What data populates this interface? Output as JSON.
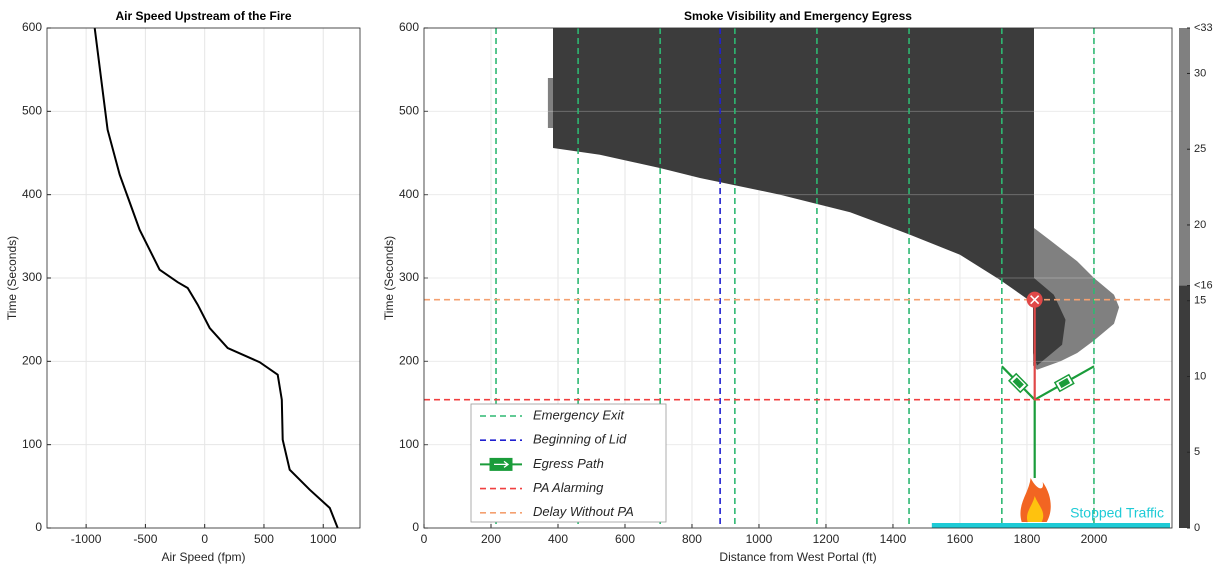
{
  "chart_data": [
    {
      "type": "line",
      "title": "Air Speed Upstream of the Fire",
      "xlabel": "Air Speed (fpm)",
      "ylabel": "Time (Seconds)",
      "xlim": [
        -1330,
        1310
      ],
      "ylim": [
        0,
        600
      ],
      "xticks": [
        -1000,
        -500,
        0,
        500,
        1000
      ],
      "yticks": [
        0,
        100,
        200,
        300,
        400,
        500,
        600
      ],
      "grid": true,
      "series": [
        {
          "color": "#000000",
          "x": [
            -928,
            -819,
            -717,
            -549,
            -380,
            -228,
            -143,
            -59,
            42,
            194,
            464,
            616,
            650,
            658,
            717,
            886,
            1055,
            1122
          ],
          "values": [
            600,
            478,
            424,
            358,
            310,
            295,
            288,
            268,
            240,
            216,
            199,
            184,
            154,
            106,
            70,
            46,
            24,
            0
          ]
        }
      ]
    },
    {
      "type": "heatmap",
      "title": "Smoke Visibility and Emergency Egress",
      "xlabel": "Distance from West Portal (ft)",
      "ylabel": "Time (Seconds)",
      "xlim": [
        0,
        2233
      ],
      "ylim": [
        0,
        600
      ],
      "xticks": [
        0,
        200,
        400,
        600,
        800,
        1000,
        1200,
        1400,
        1600,
        1800,
        2000
      ],
      "yticks": [
        0,
        100,
        200,
        300,
        400,
        500,
        600
      ],
      "grid": true,
      "regions": [
        {
          "color": "#808080",
          "visibility": [
            16,
            33
          ],
          "x": [
            1821,
            1870,
            1950,
            2000,
            2060,
            2075,
            2060,
            2000,
            1950,
            1900,
            1830,
            1818,
            1818
          ],
          "y": [
            360,
            345,
            320,
            300,
            280,
            265,
            245,
            225,
            210,
            200,
            190,
            195,
            300
          ]
        },
        {
          "color": "#808080",
          "visibility": [
            16,
            33
          ],
          "x": [
            370,
            385,
            385,
            370
          ],
          "y": [
            540,
            540,
            480,
            480
          ]
        },
        {
          "color": "#3c3c3c",
          "visibility": [
            0,
            16
          ],
          "x": [
            385,
            1821,
            1821,
            1880,
            1915,
            1905,
            1860,
            1830,
            1818,
            1818,
            1719,
            1600,
            1451,
            1272,
            1063,
            824,
            704,
            525,
            385
          ],
          "y": [
            600,
            600,
            300,
            280,
            250,
            220,
            205,
            195,
            210,
            270,
            298,
            328,
            352,
            379,
            400,
            420,
            432,
            448,
            456
          ]
        }
      ],
      "series": [
        {
          "name": "Emergency Exit",
          "color": "#2eb872",
          "orientation": "vertical",
          "values": [
            215,
            460,
            705,
            928,
            1173,
            1448,
            1725,
            2000
          ]
        },
        {
          "name": "Beginning of Lid",
          "color": "#2020d0",
          "orientation": "vertical",
          "values": [
            884
          ]
        },
        {
          "name": "Egress Path",
          "color": "#1a9c3a",
          "x": [
            1823,
            1823,
            1725,
            null,
            1823,
            2000
          ],
          "values": [
            60,
            154,
            194,
            null,
            154,
            194
          ]
        },
        {
          "name": "PA Alarming",
          "color": "#f04040",
          "orientation": "horizontal",
          "values": [
            154
          ]
        },
        {
          "name": "Delay Without PA",
          "color": "#f4a070",
          "orientation": "horizontal",
          "values": [
            274
          ]
        }
      ],
      "blocked_path": {
        "color": "#e04848",
        "x": [
          1823,
          1823
        ],
        "values": [
          154,
          274
        ]
      },
      "stopped_traffic": {
        "label": "Stopped Traffic",
        "color": "#1ecbd6",
        "x": [
          1516,
          2227
        ]
      },
      "colorbar": {
        "lim": [
          0,
          33
        ],
        "ticks": [
          0,
          5,
          10,
          15,
          {
            "value": 16,
            "label": "<16"
          },
          20,
          25,
          30,
          {
            "value": 33,
            "label": "<33"
          }
        ]
      }
    }
  ]
}
